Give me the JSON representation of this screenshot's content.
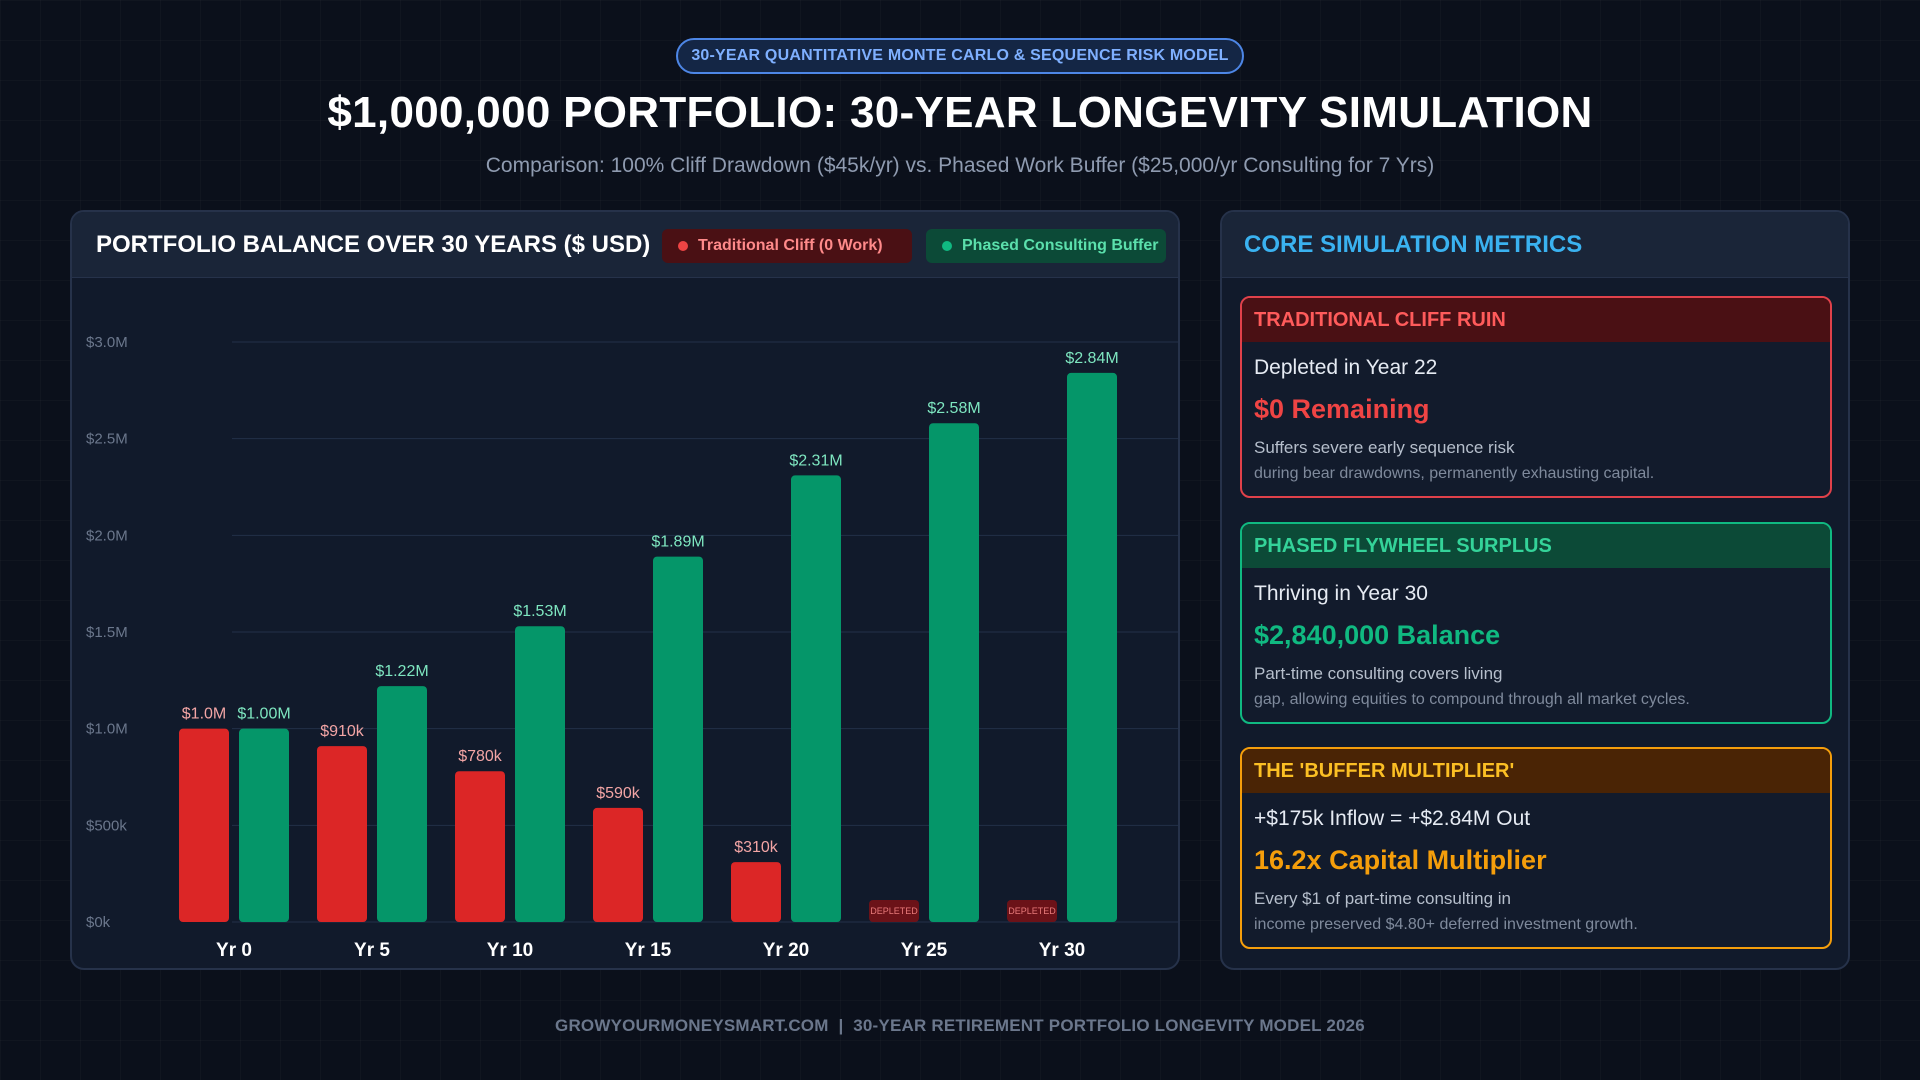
{
  "header": {
    "badge": "30-YEAR QUANTITATIVE MONTE CARLO & SEQUENCE RISK MODEL",
    "title": "$1,000,000 PORTFOLIO: 30-YEAR LONGEVITY SIMULATION",
    "subtitle": "Comparison: 100% Cliff Drawdown ($45k/yr) vs. Phased Work Buffer ($25,000/yr Consulting for 7 Yrs)"
  },
  "colors": {
    "cliff": "#dc2626",
    "buffer": "#059669",
    "cliff_label": "#f3a5a5",
    "buffer_label": "#7ee6c0"
  },
  "chart_data": {
    "type": "bar",
    "title": "PORTFOLIO BALANCE OVER 30 YEARS ($ USD)",
    "xlabel": "",
    "ylabel": "",
    "categories": [
      "Yr 0",
      "Yr 5",
      "Yr 10",
      "Yr 15",
      "Yr 20",
      "Yr 25",
      "Yr 30"
    ],
    "ylim": [
      0,
      3000000
    ],
    "yticks": [
      {
        "value": 0,
        "label": "$0k"
      },
      {
        "value": 500000,
        "label": "$500k"
      },
      {
        "value": 1000000,
        "label": "$1.0M"
      },
      {
        "value": 1500000,
        "label": "$1.5M"
      },
      {
        "value": 2000000,
        "label": "$2.0M"
      },
      {
        "value": 2500000,
        "label": "$2.5M"
      },
      {
        "value": 3000000,
        "label": "$3.0M"
      }
    ],
    "grid": true,
    "legend_position": "top-right",
    "series": [
      {
        "name": "Traditional Cliff (0 Work)",
        "values": [
          1000000,
          910000,
          780000,
          590000,
          310000,
          0,
          0
        ],
        "labels": [
          "$1.0M",
          "$910k",
          "$780k",
          "$590k",
          "$310k",
          "DEPLETED",
          "DEPLETED"
        ]
      },
      {
        "name": "Phased Consulting Buffer",
        "values": [
          1000000,
          1220000,
          1530000,
          1890000,
          2310000,
          2580000,
          2840000
        ],
        "labels": [
          "$1.00M",
          "$1.22M",
          "$1.53M",
          "$1.89M",
          "$2.31M",
          "$2.58M",
          "$2.84M"
        ]
      }
    ]
  },
  "metrics": {
    "title": "CORE SIMULATION METRICS",
    "cards": [
      {
        "heading": "TRADITIONAL CLIFF RUIN",
        "line1": "Depleted in Year 22",
        "big": "$0 Remaining",
        "desc1": "Suffers severe early sequence risk",
        "desc2": "during bear drawdowns, permanently exhausting capital."
      },
      {
        "heading": "PHASED FLYWHEEL SURPLUS",
        "line1": "Thriving in Year 30",
        "big": "$2,840,000 Balance",
        "desc1": "Part-time consulting covers living",
        "desc2": "gap, allowing equities to compound through all market cycles."
      },
      {
        "heading": "THE 'BUFFER MULTIPLIER'",
        "line1": "+$175k Inflow = +$2.84M Out",
        "big": "16.2x Capital Multiplier",
        "desc1": "Every $1 of part-time consulting in",
        "desc2": "income preserved $4.80+ deferred investment growth."
      }
    ]
  },
  "footer": "GROWYOURMONEYSMART.COM  |  30-YEAR RETIREMENT PORTFOLIO LONGEVITY MODEL 2026"
}
